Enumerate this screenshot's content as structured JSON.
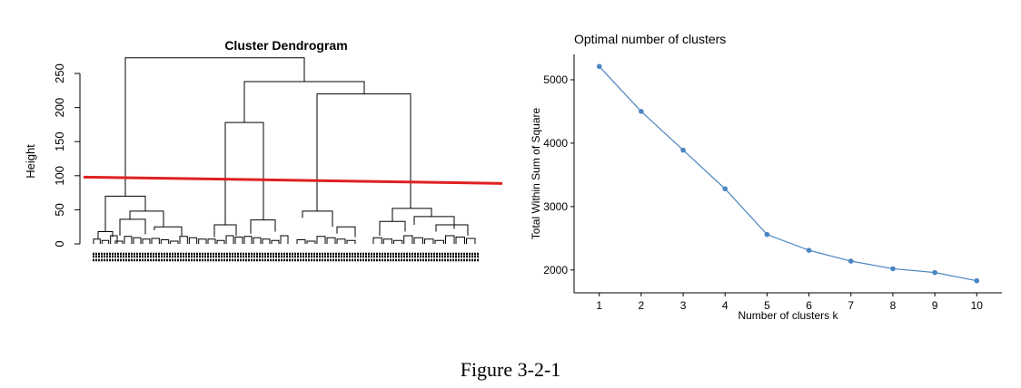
{
  "figure_caption": "Figure 3-2-1",
  "chart_data": [
    {
      "type": "dendrogram",
      "title": "Cluster Dendrogram",
      "ylabel": "Height",
      "yticks": [
        0,
        50,
        100,
        150,
        200,
        250
      ],
      "ylim": [
        0,
        270
      ],
      "cut_height": 94,
      "cut_line_color": "#e02020",
      "major_merges": [
        {
          "clusters": "left group",
          "height": 70
        },
        {
          "clusters": "middle pair",
          "height": 178
        },
        {
          "clusters": "right pair",
          "height": 220
        },
        {
          "clusters": "middle + right",
          "height": 238
        },
        {
          "clusters": "all",
          "height": 273
        }
      ]
    },
    {
      "type": "line",
      "title": "Optimal number of clusters",
      "xlabel": "Number of clusters k",
      "ylabel": "Total Within Sum of Square",
      "x": [
        1,
        2,
        3,
        4,
        5,
        6,
        7,
        8,
        9,
        10
      ],
      "y": [
        5210,
        4500,
        3890,
        3280,
        2560,
        2310,
        2140,
        2020,
        1960,
        1830
      ],
      "yticks": [
        2000,
        3000,
        4000,
        5000
      ],
      "xlim": [
        0.4,
        10.6
      ],
      "ylim": [
        1640,
        5400
      ],
      "color": "#4a86c0"
    }
  ]
}
